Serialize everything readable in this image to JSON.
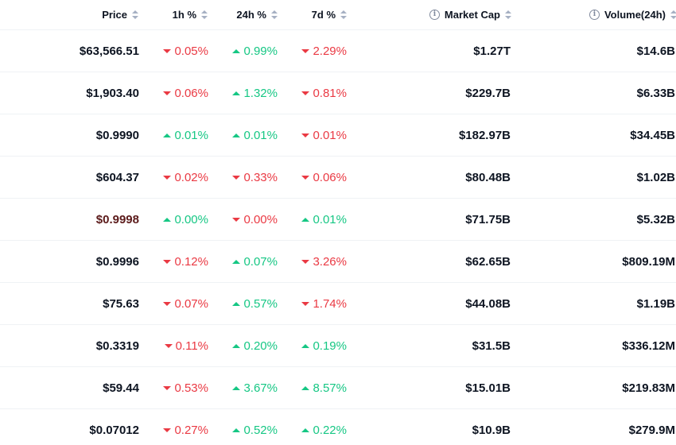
{
  "columns": {
    "price": "Price",
    "h1": "1h %",
    "h24": "24h %",
    "d7": "7d %",
    "market_cap": "Market Cap",
    "volume": "Volume(24h)"
  },
  "colors": {
    "positive": "#16c784",
    "negative": "#ea3943"
  },
  "rows": [
    {
      "price": "$63,566.51",
      "h1": "0.05%",
      "h1_dir": "down",
      "h24": "0.99%",
      "h24_dir": "up",
      "d7": "2.29%",
      "d7_dir": "down",
      "market_cap": "$1.27T",
      "volume": "$14.6B"
    },
    {
      "price": "$1,903.40",
      "h1": "0.06%",
      "h1_dir": "down",
      "h24": "1.32%",
      "h24_dir": "up",
      "d7": "0.81%",
      "d7_dir": "down",
      "market_cap": "$229.7B",
      "volume": "$6.33B"
    },
    {
      "price": "$0.9990",
      "h1": "0.01%",
      "h1_dir": "up",
      "h24": "0.01%",
      "h24_dir": "up",
      "d7": "0.01%",
      "d7_dir": "down",
      "market_cap": "$182.97B",
      "volume": "$34.45B"
    },
    {
      "price": "$604.37",
      "h1": "0.02%",
      "h1_dir": "down",
      "h24": "0.33%",
      "h24_dir": "down",
      "d7": "0.06%",
      "d7_dir": "down",
      "market_cap": "$80.48B",
      "volume": "$1.02B"
    },
    {
      "price": "$0.9998",
      "price_tone": "negative",
      "h1": "0.00%",
      "h1_dir": "up",
      "h24": "0.00%",
      "h24_dir": "down",
      "d7": "0.01%",
      "d7_dir": "up",
      "market_cap": "$71.75B",
      "volume": "$5.32B"
    },
    {
      "price": "$0.9996",
      "h1": "0.12%",
      "h1_dir": "down",
      "h24": "0.07%",
      "h24_dir": "up",
      "d7": "3.26%",
      "d7_dir": "down",
      "market_cap": "$62.65B",
      "volume": "$809.19M"
    },
    {
      "price": "$75.63",
      "h1": "0.07%",
      "h1_dir": "down",
      "h24": "0.57%",
      "h24_dir": "up",
      "d7": "1.74%",
      "d7_dir": "down",
      "market_cap": "$44.08B",
      "volume": "$1.19B"
    },
    {
      "price": "$0.3319",
      "h1": "0.11%",
      "h1_dir": "down",
      "h24": "0.20%",
      "h24_dir": "up",
      "d7": "0.19%",
      "d7_dir": "up",
      "market_cap": "$31.5B",
      "volume": "$336.12M"
    },
    {
      "price": "$59.44",
      "h1": "0.53%",
      "h1_dir": "down",
      "h24": "3.67%",
      "h24_dir": "up",
      "d7": "8.57%",
      "d7_dir": "up",
      "market_cap": "$15.01B",
      "volume": "$219.83M"
    },
    {
      "price": "$0.07012",
      "h1": "0.27%",
      "h1_dir": "down",
      "h24": "0.52%",
      "h24_dir": "up",
      "d7": "0.22%",
      "d7_dir": "up",
      "market_cap": "$10.9B",
      "volume": "$279.9M"
    }
  ]
}
